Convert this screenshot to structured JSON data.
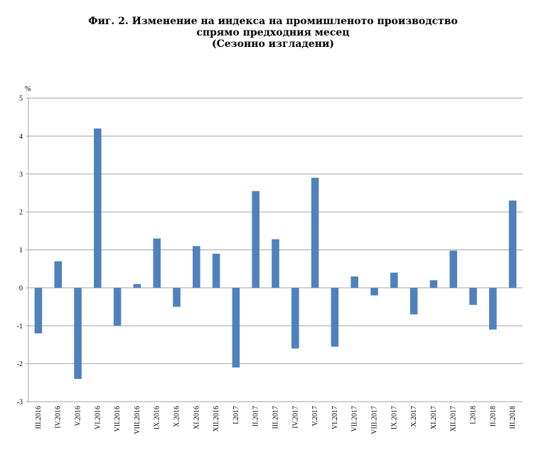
{
  "chart_data": {
    "type": "bar",
    "title_lines": [
      "Фиг. 2. Изменение на индекса на промишленото производство",
      "спрямо предходния месец",
      "(Сезонно изгладени)"
    ],
    "ylabel": "%",
    "ylim": [
      -3,
      5
    ],
    "yticks": [
      5,
      4,
      3,
      2,
      1,
      0,
      -1,
      -2,
      -3
    ],
    "grid": true,
    "bar_color": "#4f81bd",
    "categories": [
      "III.2016",
      "IV.2016",
      "V.2016",
      "VI.2016",
      "VII.2016",
      "VIII.2016",
      "IX.2016",
      "X.2016",
      "XI.2016",
      "XII.2016",
      "I.2017",
      "II.2017",
      "III.2017",
      "IV.2017",
      "V.2017",
      "VI.2017",
      "VII.2017",
      "VIII.2017",
      "IX.2017",
      "X.2017",
      "XI.2017",
      "XII.2017",
      "I.2018",
      "II.2018",
      "III.2018"
    ],
    "values": [
      -1.2,
      0.7,
      -2.4,
      4.2,
      -1.0,
      0.1,
      1.3,
      -0.5,
      1.1,
      0.9,
      -2.1,
      2.55,
      1.28,
      -1.6,
      2.9,
      -1.55,
      0.3,
      -0.2,
      0.4,
      -0.7,
      0.2,
      0.98,
      -0.45,
      -1.1,
      2.3
    ]
  }
}
